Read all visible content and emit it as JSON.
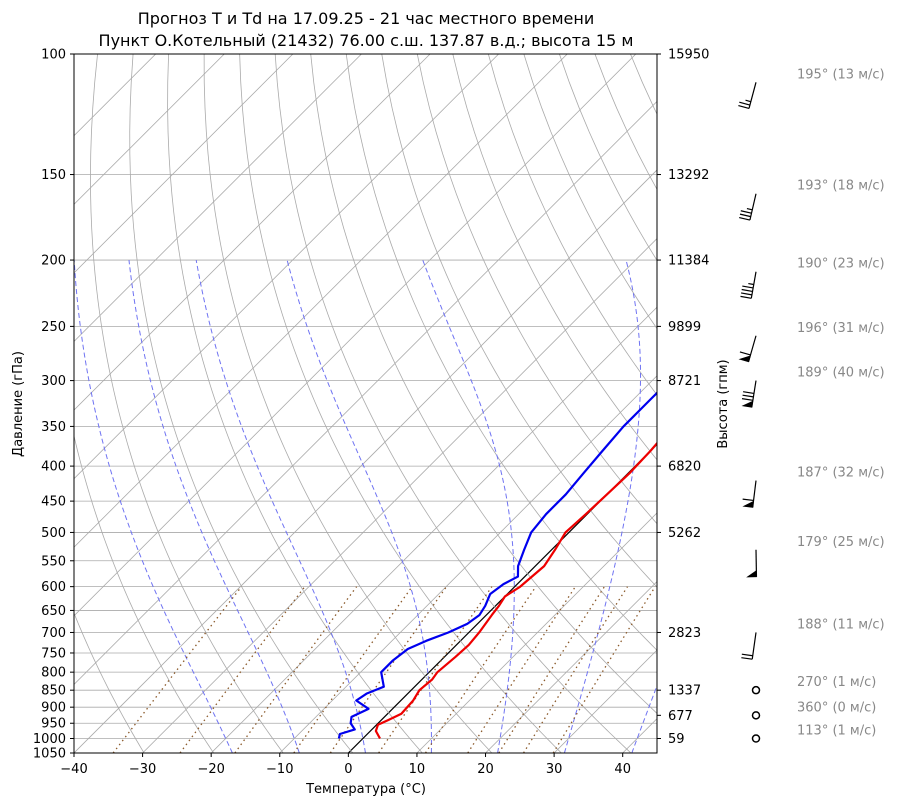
{
  "chart_data": {
    "type": "line",
    "title_line1": "Прогноз T и Td на 17.09.25 - 21 час местного времени",
    "title_line2": "Пункт О.Котельный (21432) 76.00 с.ш. 137.87 в.д.; высота 15 м",
    "xlabel": "Температура (°C)",
    "ylabel": "Давление (гПа)",
    "y2label": "Высота (гпм)",
    "xlim": [
      -40,
      45
    ],
    "ylim": [
      1050,
      100
    ],
    "y_scale": "log",
    "grid": true,
    "x_ticks": [
      -40,
      -30,
      -20,
      -10,
      0,
      10,
      20,
      30,
      40
    ],
    "pressure_ticks": [
      100,
      150,
      200,
      250,
      300,
      350,
      400,
      450,
      500,
      550,
      600,
      650,
      700,
      750,
      800,
      850,
      900,
      950,
      1000,
      1050
    ],
    "height_labels": [
      {
        "p": 100,
        "h": "15950"
      },
      {
        "p": 150,
        "h": "13292"
      },
      {
        "p": 200,
        "h": "11384"
      },
      {
        "p": 250,
        "h": "9899"
      },
      {
        "p": 300,
        "h": "8721"
      },
      {
        "p": 400,
        "h": "6820"
      },
      {
        "p": 500,
        "h": "5262"
      },
      {
        "p": 700,
        "h": "2823"
      },
      {
        "p": 850,
        "h": "1337"
      },
      {
        "p": 925,
        "h": "677"
      },
      {
        "p": 1000,
        "h": "59"
      }
    ],
    "series": [
      {
        "key": "temperature",
        "color": "#ee0000",
        "points": [
          [
            1000,
            2.5
          ],
          [
            975,
            0.8
          ],
          [
            955,
            0.2
          ],
          [
            940,
            1.0
          ],
          [
            920,
            2.0
          ],
          [
            880,
            1.8
          ],
          [
            850,
            1.2
          ],
          [
            820,
            1.5
          ],
          [
            800,
            1.2
          ],
          [
            760,
            1.6
          ],
          [
            730,
            1.8
          ],
          [
            700,
            1.5
          ],
          [
            660,
            0.8
          ],
          [
            640,
            0.5
          ],
          [
            620,
            0.0
          ],
          [
            600,
            0.8
          ],
          [
            560,
            1.3
          ],
          [
            530,
            0.5
          ],
          [
            500,
            -0.5
          ],
          [
            470,
            -0.2
          ],
          [
            440,
            0.0
          ],
          [
            410,
            0.2
          ],
          [
            380,
            0.0
          ],
          [
            350,
            -0.5
          ],
          [
            320,
            -0.3
          ],
          [
            300,
            -0.2
          ],
          [
            288,
            0.2
          ],
          [
            281,
            1.5
          ],
          [
            275,
            3.0
          ],
          [
            268,
            6.5
          ],
          [
            262,
            9.5
          ],
          [
            255,
            12.5
          ],
          [
            248,
            15.8
          ],
          [
            242,
            16.5
          ],
          [
            230,
            20.0
          ],
          [
            218,
            24.0
          ],
          [
            206,
            29.0
          ],
          [
            193,
            32.0
          ],
          [
            180,
            35.0
          ],
          [
            168,
            37.5
          ],
          [
            158,
            40.0
          ],
          [
            148,
            41.5
          ],
          [
            138,
            44.5
          ],
          [
            130,
            47.0
          ],
          [
            122,
            50.0
          ],
          [
            115,
            53.0
          ],
          [
            108,
            56.0
          ],
          [
            100,
            60.0
          ]
        ]
      },
      {
        "key": "dewpoint",
        "color": "#0000ee",
        "points": [
          [
            1000,
            -3.5
          ],
          [
            985,
            -4.0
          ],
          [
            970,
            -2.5
          ],
          [
            950,
            -4.0
          ],
          [
            930,
            -4.8
          ],
          [
            905,
            -3.5
          ],
          [
            880,
            -6.5
          ],
          [
            860,
            -6.0
          ],
          [
            840,
            -4.5
          ],
          [
            800,
            -7.0
          ],
          [
            770,
            -7.0
          ],
          [
            740,
            -6.5
          ],
          [
            720,
            -5.0
          ],
          [
            700,
            -3.0
          ],
          [
            680,
            -1.5
          ],
          [
            660,
            -1.0
          ],
          [
            640,
            -1.5
          ],
          [
            615,
            -2.5
          ],
          [
            595,
            -2.0
          ],
          [
            580,
            -1.0
          ],
          [
            560,
            -2.5
          ],
          [
            530,
            -4.0
          ],
          [
            500,
            -5.5
          ],
          [
            470,
            -6.0
          ],
          [
            440,
            -6.0
          ],
          [
            410,
            -6.5
          ],
          [
            380,
            -7.0
          ],
          [
            350,
            -7.5
          ],
          [
            320,
            -7.5
          ],
          [
            300,
            -7.5
          ],
          [
            285,
            -6.5
          ],
          [
            270,
            -5.0
          ],
          [
            262,
            -5.0
          ],
          [
            255,
            -3.0
          ],
          [
            245,
            1.0
          ],
          [
            236,
            2.0
          ],
          [
            225,
            5.0
          ],
          [
            210,
            9.5
          ],
          [
            195,
            13.5
          ],
          [
            178,
            16.5
          ],
          [
            160,
            19.0
          ],
          [
            150,
            20.5
          ],
          [
            140,
            23.0
          ],
          [
            130,
            25.5
          ],
          [
            120,
            28.5
          ],
          [
            110,
            31.0
          ],
          [
            100,
            34.5
          ]
        ]
      }
    ],
    "wind_labels": [
      {
        "p": 110,
        "text": "195° (13 м/с)",
        "dir": 195,
        "speed": 13
      },
      {
        "p": 160,
        "text": "193° (18 м/с)",
        "dir": 193,
        "speed": 18
      },
      {
        "p": 208,
        "text": "190° (23 м/с)",
        "dir": 190,
        "speed": 23
      },
      {
        "p": 258,
        "text": "196° (31 м/с)",
        "dir": 196,
        "speed": 31
      },
      {
        "p": 300,
        "text": "189° (40 м/с)",
        "dir": 189,
        "speed": 40
      },
      {
        "p": 420,
        "text": "187° (32 м/с)",
        "dir": 187,
        "speed": 32
      },
      {
        "p": 530,
        "text": "179° (25 м/с)",
        "dir": 179,
        "speed": 25
      },
      {
        "p": 700,
        "text": "188° (11 м/с)",
        "dir": 188,
        "speed": 11
      },
      {
        "p": 850,
        "text": "270° (1 м/с)",
        "dir": 270,
        "speed": 1
      },
      {
        "p": 925,
        "text": "360° (0 м/с)",
        "dir": 360,
        "speed": 0
      },
      {
        "p": 1000,
        "text": "113° (1 м/с)",
        "dir": 113,
        "speed": 1
      }
    ],
    "isotherm_range": [
      -130,
      50
    ],
    "dry_adiabat_thetas_k": [
      230,
      240,
      250,
      260,
      270,
      280,
      290,
      300,
      310,
      320,
      330,
      340,
      350,
      360,
      370,
      380,
      390,
      400,
      410,
      420,
      430,
      440,
      450,
      460
    ],
    "moist_adiabat_start_temps": [
      -20,
      -10,
      0,
      10,
      20,
      30,
      40
    ],
    "mixing_ratios_gkg": [
      0.2,
      0.5,
      1,
      2,
      3,
      5,
      8,
      12,
      16,
      20,
      26
    ],
    "colors": {
      "isobar": "#aaaaaa",
      "dry_adiabat": "#aaaaaa",
      "isotherm": "#aaaaaa",
      "moist_adiabat": "#6f73f2",
      "mixing_ratio": "#8b5a2b",
      "zero_isotherm": "#000000",
      "wind_label": "#888888"
    }
  }
}
